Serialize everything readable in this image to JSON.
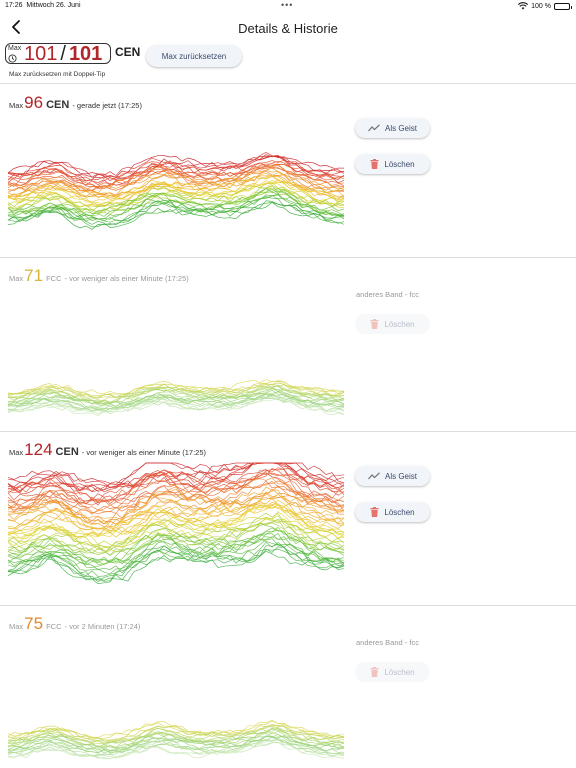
{
  "status_bar": {
    "time": "17:26",
    "date": "Mittwoch 26. Juni",
    "battery": "100 %",
    "battery_level": 1.0,
    "icons": [
      "wifi-icon",
      "battery-icon"
    ]
  },
  "nav": {
    "title": "Details & Historie",
    "back_icon": "chevron-left-icon"
  },
  "top": {
    "max_label": "Max",
    "max_current": "101",
    "max_overall": "101",
    "band": "CEN",
    "reset_button": "Max zurücksetzen",
    "hint": "Max zurücksetzen mit Doppel-Tip",
    "clock_icon": "clock-icon"
  },
  "colors": {
    "accent_red": "#b1262a",
    "orange": "#e08a2c",
    "yellow": "#d8b43a",
    "button_bg": "#f1f4f9",
    "button_text": "#3b4b6b"
  },
  "entries": [
    {
      "max_label": "Max",
      "value": "96",
      "band": "CEN",
      "time_text": "- gerade jetzt  (17:25)",
      "value_color": "#b1262a",
      "dim": false,
      "ghost_button": "Als Geist",
      "delete_button": "Löschen",
      "other_band": ""
    },
    {
      "max_label": "Max",
      "value": "71",
      "band": "FCC",
      "time_text": "- vor weniger als einer Minute  (17:25)",
      "value_color": "#d8b43a",
      "dim": true,
      "ghost_button": "",
      "delete_button": "Löschen",
      "other_band": "anderes Band - fcc"
    },
    {
      "max_label": "Max",
      "value": "124",
      "band": "CEN",
      "time_text": "- vor weniger als einer Minute  (17:25)",
      "value_color": "#b1262a",
      "dim": false,
      "ghost_button": "Als Geist",
      "delete_button": "Löschen",
      "other_band": ""
    },
    {
      "max_label": "Max",
      "value": "75",
      "band": "FCC",
      "time_text": "- vor 2 Minuten  (17:24)",
      "value_color": "#e08a2c",
      "dim": true,
      "ghost_button": "",
      "delete_button": "Löschen",
      "other_band": "anderes Band - fcc"
    }
  ]
}
